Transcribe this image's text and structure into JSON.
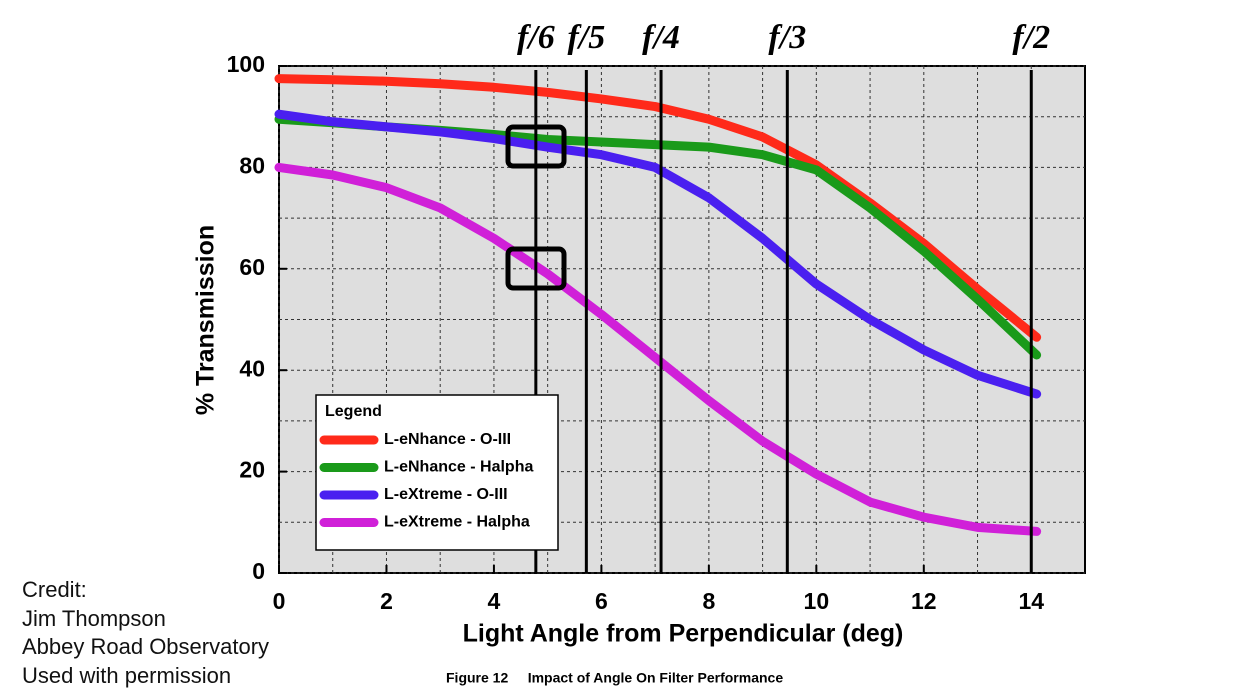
{
  "chart_data": {
    "type": "line",
    "y_label": "% Transmission",
    "x_label": "Light Angle from Perpendicular (deg)",
    "caption": "Figure 12     Impact of Angle On Filter Performance",
    "legend_title": "Legend",
    "legend": "lower left",
    "grid": true,
    "xlim": [
      0,
      15
    ],
    "ylim": [
      0,
      100
    ],
    "xticks": [
      0,
      2,
      4,
      6,
      8,
      10,
      12,
      14
    ],
    "yticks": [
      0,
      20,
      40,
      60,
      80,
      100
    ],
    "xminor": [
      1,
      3,
      5,
      7,
      9,
      11,
      13
    ],
    "yminor": [
      10,
      30,
      50,
      70,
      90
    ],
    "x": [
      0,
      1,
      2,
      3,
      4,
      5,
      6,
      7,
      8,
      9,
      10,
      11,
      12,
      13,
      14.1
    ],
    "series": [
      {
        "name": "L-eNhance - O-III",
        "color": "#ff2a1a",
        "values": [
          97.5,
          97.3,
          97,
          96.5,
          95.8,
          94.8,
          93.5,
          92,
          89.5,
          86,
          80.5,
          73,
          65,
          56,
          46.5
        ]
      },
      {
        "name": "L-eNhance - Halpha",
        "color": "#1a9a1a",
        "values": [
          89.5,
          88.8,
          88,
          87.3,
          86.5,
          85.5,
          85,
          84.5,
          84,
          82.5,
          79.5,
          72,
          63.5,
          54,
          43
        ]
      },
      {
        "name": "L-eXtreme - O-III",
        "color": "#4a1ff0",
        "values": [
          90.5,
          89,
          88,
          87,
          85.7,
          84,
          82.5,
          80,
          74,
          66,
          57,
          50,
          44,
          39,
          35.3
        ]
      },
      {
        "name": "L-eXtreme - Halpha",
        "color": "#d020d8",
        "values": [
          80,
          78.5,
          76,
          72,
          66,
          59,
          51,
          42.5,
          34,
          26,
          19.5,
          14,
          11,
          9,
          8.2
        ]
      }
    ],
    "f_stops": [
      {
        "label": "f/6",
        "value": 4.78
      },
      {
        "label": "f/5",
        "value": 5.72
      },
      {
        "label": "f/4",
        "value": 7.11
      },
      {
        "label": "f/3",
        "value": 9.46
      },
      {
        "label": "f/2",
        "value": 14.0
      }
    ]
  },
  "credit": [
    "Credit:",
    "Jim Thompson",
    "Abbey Road Observatory",
    "Used with permission"
  ]
}
